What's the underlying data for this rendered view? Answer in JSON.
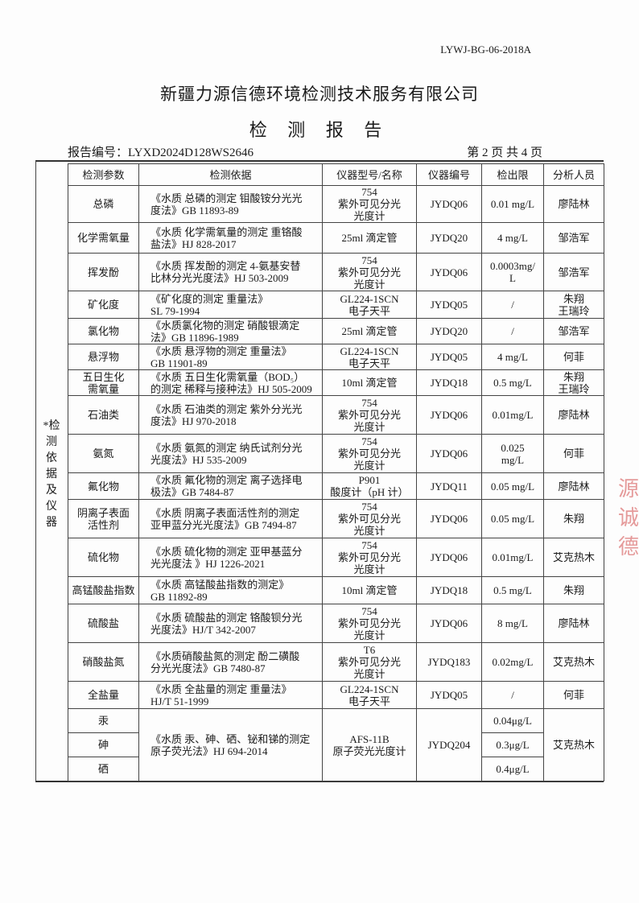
{
  "doc_code": "LYWJ-BG-06-2018A",
  "company": "新疆力源信德环境检测技术服务有限公司",
  "report_title": "检 测 报 告",
  "report_number": "报告编号：LYXD2024D128WS2646",
  "page_info": "第 2 页   共 4 页",
  "side_label": [
    "*检",
    "测",
    "依",
    "据",
    "及",
    "仪",
    "器"
  ],
  "stamp_text": "源诚德",
  "colors": {
    "stamp": "#d24a4a",
    "text": "#1a1a1a"
  },
  "headers": [
    "检测参数",
    "检测依据",
    "仪器型号/名称",
    "仪器编号",
    "检出限",
    "分析人员"
  ],
  "rows": [
    {
      "param": [
        "总磷"
      ],
      "basis": [
        "《水质  总磷的测定  钼酸铵分光光",
        "度法》GB 11893-89"
      ],
      "instrument": [
        "754",
        "紫外可见分光",
        "光度计"
      ],
      "id": "JYDQ06",
      "limit": [
        "0.01 mg/L"
      ],
      "analyst": [
        "廖陆林"
      ]
    },
    {
      "param": [
        "化学需氧量"
      ],
      "basis": [
        "《水质  化学需氧量的测定  重铬酸",
        "盐法》HJ 828-2017"
      ],
      "instrument": [
        "25ml 滴定管"
      ],
      "id": "JYDQ20",
      "limit": [
        "4 mg/L"
      ],
      "analyst": [
        "邹浩军"
      ]
    },
    {
      "param": [
        "挥发酚"
      ],
      "basis": [
        "《水质  挥发酚的测定  4-氨基安替",
        "比林分光光度法》HJ 503-2009"
      ],
      "instrument": [
        "754",
        "紫外可见分光",
        "光度计"
      ],
      "id": "JYDQ06",
      "limit": [
        "0.0003mg/",
        "L"
      ],
      "analyst": [
        "邹浩军"
      ]
    },
    {
      "param": [
        "矿化度"
      ],
      "basis": [
        "《矿化度的测定  重量法》",
        "SL 79-1994"
      ],
      "instrument": [
        "GL224-1SCN",
        "电子天平"
      ],
      "id": "JYDQ05",
      "limit": [
        "/"
      ],
      "analyst": [
        "朱翔",
        "王瑞玲"
      ]
    },
    {
      "param": [
        "氯化物"
      ],
      "basis": [
        "《水质氯化物的测定  硝酸银滴定",
        "法》GB 11896-1989"
      ],
      "instrument": [
        "25ml 滴定管"
      ],
      "id": "JYDQ20",
      "limit": [
        "/"
      ],
      "analyst": [
        "邹浩军"
      ]
    },
    {
      "param": [
        "悬浮物"
      ],
      "basis": [
        "《水质  悬浮物的测定  重量法》",
        "GB 11901-89"
      ],
      "instrument": [
        "GL224-1SCN",
        "电子天平"
      ],
      "id": "JYDQ05",
      "limit": [
        "4 mg/L"
      ],
      "analyst": [
        "何菲"
      ]
    },
    {
      "param": [
        "五日生化",
        "需氧量"
      ],
      "basis": [
        "《水质  五日生化需氧量（BOD₅）",
        "的测定  稀释与接种法》HJ 505-2009"
      ],
      "instrument": [
        "10ml 滴定管"
      ],
      "id": "JYDQ18",
      "limit": [
        "0.5 mg/L"
      ],
      "analyst": [
        "朱翔",
        "王瑞玲"
      ]
    },
    {
      "param": [
        "石油类"
      ],
      "basis": [
        "《水质  石油类的测定  紫外分光光",
        "度法》HJ 970-2018"
      ],
      "instrument": [
        "754",
        "紫外可见分光",
        "光度计"
      ],
      "id": "JYDQ06",
      "limit": [
        "0.01mg/L"
      ],
      "analyst": [
        "廖陆林"
      ]
    },
    {
      "param": [
        "氨氮"
      ],
      "basis": [
        "《水质  氨氮的测定  纳氏试剂分光",
        "光度法》HJ 535-2009"
      ],
      "instrument": [
        "754",
        "紫外可见分光",
        "光度计"
      ],
      "id": "JYDQ06",
      "limit": [
        "0.025",
        "mg/L"
      ],
      "analyst": [
        "何菲"
      ]
    },
    {
      "param": [
        "氟化物"
      ],
      "basis": [
        "《水质  氟化物的测定  离子选择电",
        "极法》GB 7484-87"
      ],
      "instrument": [
        "P901",
        "酸度计（pH 计）"
      ],
      "id": "JYDQ11",
      "limit": [
        "0.05 mg/L"
      ],
      "analyst": [
        "廖陆林"
      ]
    },
    {
      "param": [
        "阴离子表面",
        "活性剂"
      ],
      "basis": [
        "《水质  阴离子表面活性剂的测定",
        "亚甲蓝分光光度法》GB 7494-87"
      ],
      "instrument": [
        "754",
        "紫外可见分光",
        "光度计"
      ],
      "id": "JYDQ06",
      "limit": [
        "0.05 mg/L"
      ],
      "analyst": [
        "朱翔"
      ]
    },
    {
      "param": [
        "硫化物"
      ],
      "basis": [
        "《水质  硫化物的测定  亚甲基蓝分",
        "光光度法  》HJ 1226-2021"
      ],
      "instrument": [
        "754",
        "紫外可见分光",
        "光度计"
      ],
      "id": "JYDQ06",
      "limit": [
        "0.01mg/L"
      ],
      "analyst": [
        "艾克热木"
      ]
    },
    {
      "param": [
        "高锰酸盐指数"
      ],
      "basis": [
        "《水质  高锰酸盐指数的测定》",
        "GB 11892-89"
      ],
      "instrument": [
        "10ml 滴定管"
      ],
      "id": "JYDQ18",
      "limit": [
        "0.5 mg/L"
      ],
      "analyst": [
        "朱翔"
      ]
    },
    {
      "param": [
        "硫酸盐"
      ],
      "basis": [
        "《水质  硫酸盐的测定  铬酸钡分光",
        "光度法》HJ/T 342-2007"
      ],
      "instrument": [
        "754",
        "紫外可见分光",
        "光度计"
      ],
      "id": "JYDQ06",
      "limit": [
        "8 mg/L"
      ],
      "analyst": [
        "廖陆林"
      ]
    },
    {
      "param": [
        "硝酸盐氮"
      ],
      "basis": [
        "《水质硝酸盐氮的测定  酚二磺酸",
        "分光光度法》GB 7480-87"
      ],
      "instrument": [
        "T6",
        "紫外可见分光",
        "光度计"
      ],
      "id": "JYDQ183",
      "limit": [
        "0.02mg/L"
      ],
      "analyst": [
        "艾克热木"
      ]
    },
    {
      "param": [
        "全盐量"
      ],
      "basis": [
        "《水质  全盐量的测定  重量法》",
        "HJ/T 51-1999"
      ],
      "instrument": [
        "GL224-1SCN",
        "电子天平"
      ],
      "id": "JYDQ05",
      "limit": [
        "/"
      ],
      "analyst": [
        "何菲"
      ]
    }
  ],
  "group": {
    "params": [
      "汞",
      "砷",
      "硒"
    ],
    "limits": [
      "0.04μg/L",
      "0.3μg/L",
      "0.4μg/L"
    ],
    "basis": [
      "《水质  汞、砷、硒、铋和锑的测定",
      "原子荧光法》HJ 694-2014"
    ],
    "instrument": [
      "AFS-11B",
      "原子荧光光度计"
    ],
    "id": "JYDQ204",
    "analyst": "艾克热木"
  }
}
